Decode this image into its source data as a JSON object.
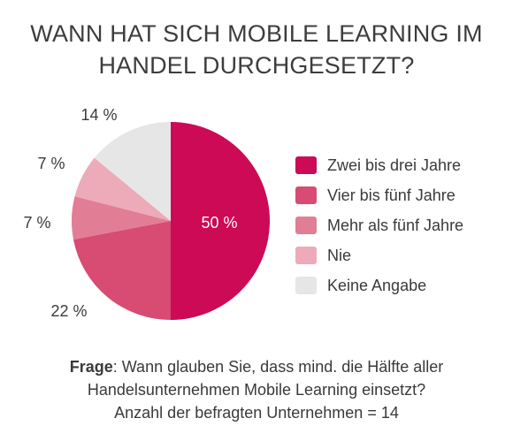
{
  "title": {
    "line1": "WANN HAT SICH MOBILE LEARNING IM",
    "line2": "HANDEL DURCHGESETZT?"
  },
  "chart_data": {
    "type": "pie",
    "title": "WANN HAT SICH MOBILE LEARNING IM HANDEL DURCHGESETZT?",
    "series": [
      {
        "name": "Zwei bis drei Jahre",
        "value": 50,
        "label": "50 %",
        "color": "#cc0a56"
      },
      {
        "name": "Vier bis fünf Jahre",
        "value": 22,
        "label": "22 %",
        "color": "#d84b72"
      },
      {
        "name": "Mehr als fünf Jahre",
        "value": 7,
        "label": "7 %",
        "color": "#e17d95"
      },
      {
        "name": "Nie",
        "value": 7,
        "label": "7 %",
        "color": "#edaab8"
      },
      {
        "name": "Keine Angabe",
        "value": 14,
        "label": "14 %",
        "color": "#e6e6e6"
      }
    ],
    "legend_position": "right"
  },
  "footer": {
    "question_label": "Frage",
    "question_text": ": Wann glauben Sie, dass mind. die Hälfte aller",
    "line2": "Handelsunternehmen Mobile Learning einsetzt?",
    "line3": "Anzahl der befragten Unternehmen = 14"
  }
}
